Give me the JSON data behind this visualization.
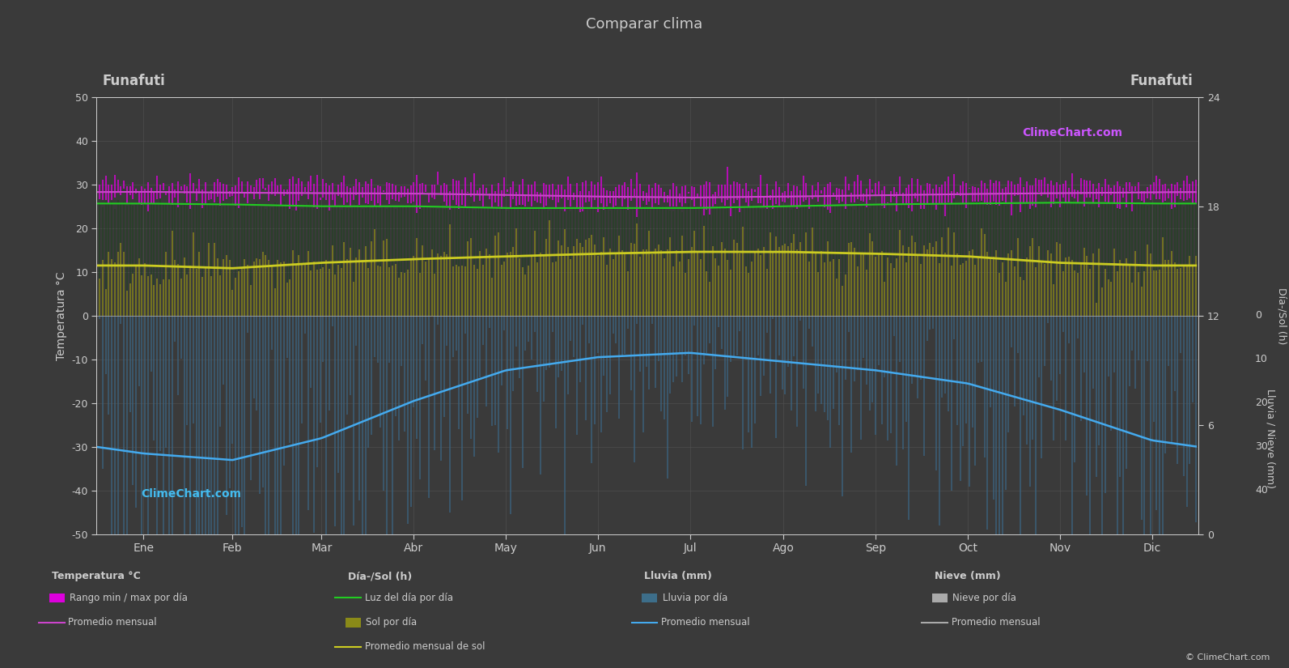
{
  "title": "Comparar clima",
  "location_left": "Funafuti",
  "location_right": "Funafuti",
  "background_color": "#3a3a3a",
  "plot_bg_color": "#3a3a3a",
  "grid_color": "#525252",
  "text_color": "#cccccc",
  "ylabel_left": "Temperatura °C",
  "ylabel_right_top": "Día-/Sol (h)",
  "ylabel_right_bottom": "Lluvia / Nieve (mm)",
  "ylim_left": [
    -50,
    50
  ],
  "months": [
    "Ene",
    "Feb",
    "Mar",
    "Abr",
    "May",
    "Jun",
    "Jul",
    "Ago",
    "Sep",
    "Oct",
    "Nov",
    "Dic"
  ],
  "month_positions": [
    0,
    31,
    59,
    90,
    120,
    151,
    181,
    212,
    243,
    273,
    304,
    334
  ],
  "days_per_month": [
    31,
    28,
    31,
    30,
    31,
    30,
    31,
    31,
    30,
    31,
    30,
    31
  ],
  "temp_max_monthly": [
    30.2,
    30.3,
    30.2,
    30.0,
    29.8,
    29.5,
    29.3,
    29.4,
    29.7,
    29.9,
    30.1,
    30.2
  ],
  "temp_min_monthly": [
    26.4,
    26.5,
    26.5,
    26.3,
    26.0,
    25.7,
    25.4,
    25.5,
    25.8,
    26.0,
    26.2,
    26.4
  ],
  "temp_avg_monthly": [
    28.3,
    28.1,
    28.0,
    27.9,
    27.6,
    27.2,
    27.0,
    27.2,
    27.5,
    27.8,
    28.0,
    28.2
  ],
  "daylight_monthly": [
    12.3,
    12.2,
    12.0,
    12.0,
    11.8,
    11.8,
    11.8,
    12.0,
    12.2,
    12.3,
    12.4,
    12.3
  ],
  "sunshine_monthly": [
    5.5,
    5.2,
    5.8,
    6.2,
    6.5,
    6.8,
    7.0,
    7.0,
    6.8,
    6.5,
    5.8,
    5.5
  ],
  "rainfall_monthly_mm": [
    315,
    330,
    280,
    195,
    125,
    95,
    85,
    105,
    125,
    155,
    215,
    285
  ],
  "rainfall_color": "#3d6e8a",
  "rainfall_daily_color": "#3a6888",
  "sunshine_color": "#8a8a18",
  "daylight_color": "#224422",
  "temp_band_color": "#dd00dd",
  "temp_avg_color": "#cc44cc",
  "rain_avg_color": "#3399cc",
  "snow_avg_color": "#aaaaaa",
  "watermark": "ClimeChart.com",
  "copyright": "© ClimeChart.com",
  "sol_line_color": "#22cc22",
  "sunshine_avg_color": "#cccc22",
  "rain_line_color": "#44aaee"
}
